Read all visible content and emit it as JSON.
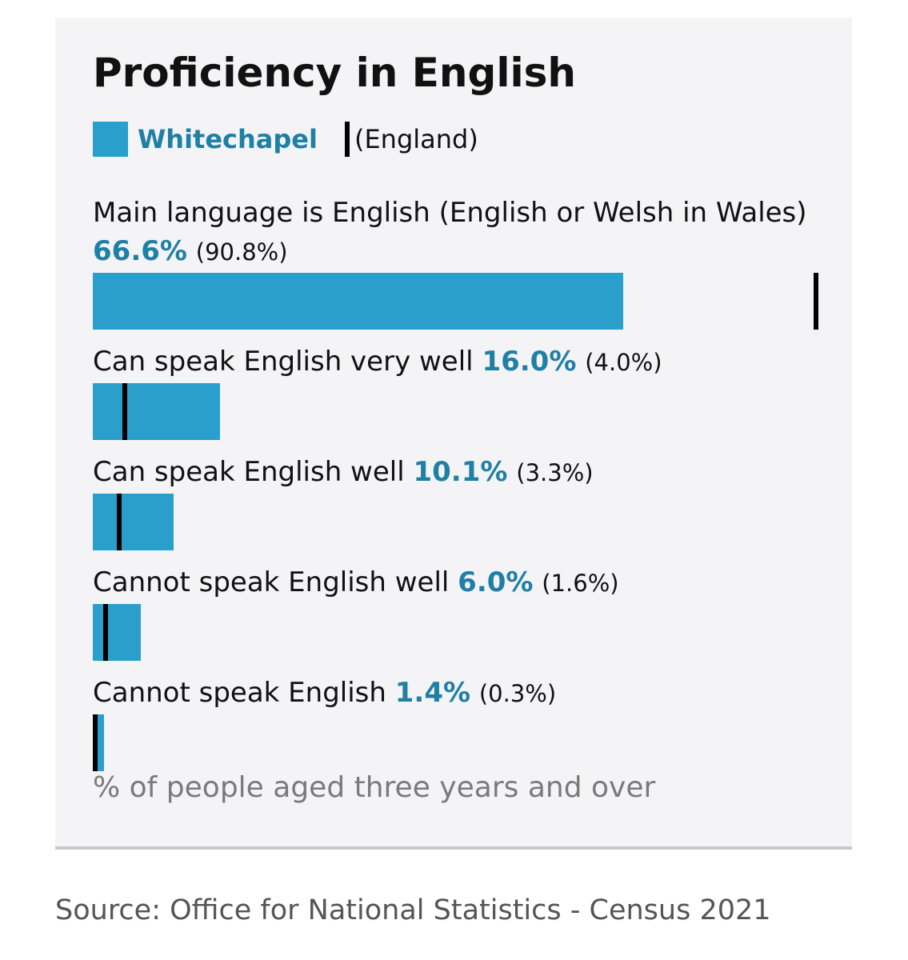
{
  "chart_data": {
    "type": "bar",
    "orientation": "horizontal",
    "title": "Proficiency in English",
    "categories": [
      "Main language is English (English or Welsh in Wales)",
      "Can speak English very well",
      "Can speak English well",
      "Cannot speak English well",
      "Cannot speak English"
    ],
    "series": [
      {
        "name": "Whitechapel",
        "color": "#2a9fcc",
        "label_color": "#1f7fa5",
        "values": [
          66.6,
          16.0,
          10.1,
          6.0,
          1.4
        ],
        "value_labels": [
          "66.6%",
          "16.0%",
          "10.1%",
          "6.0%",
          "1.4%"
        ]
      },
      {
        "name": "(England)",
        "color": "#000000",
        "values": [
          90.8,
          4.0,
          3.3,
          1.6,
          0.3
        ],
        "value_labels": [
          "(90.8%)",
          "(4.0%)",
          "(3.3%)",
          "(1.6%)",
          "(0.3%)"
        ]
      }
    ],
    "xlim": [
      0,
      100
    ],
    "note": "% of people aged three years and over",
    "source": "Source: Office for National Statistics - Census 2021"
  }
}
